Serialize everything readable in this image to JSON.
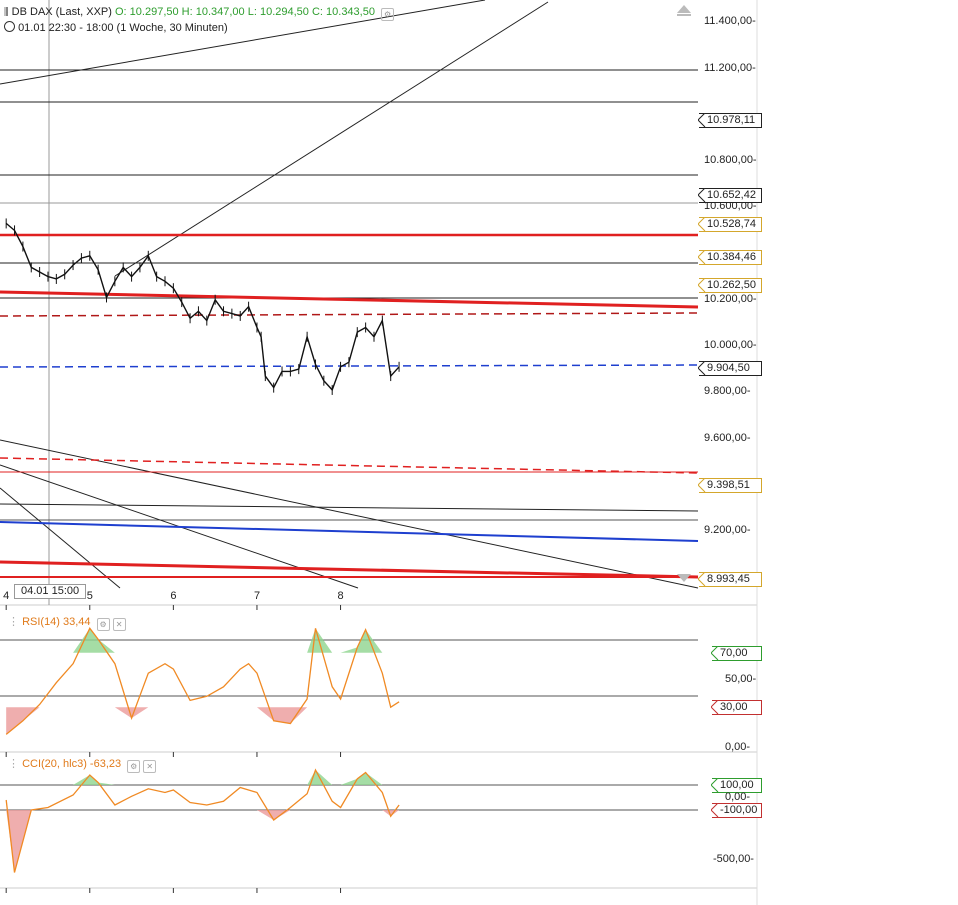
{
  "header": {
    "symbol": "DB DAX (Last, XXP)",
    "open": "O: 10.297,50",
    "high": "H: 10.347,00",
    "low": "L: 10.294,50",
    "close": "C: 10.343,50",
    "period": "01.01 22:30 - 18:00 (1 Woche, 30 Minuten)"
  },
  "crosshair": {
    "label": "04.01 15:00",
    "x_value": 4.5
  },
  "price_axis": {
    "ticks": [
      {
        "value": 11400,
        "label": "11.400,00-"
      },
      {
        "value": 11200,
        "label": "11.200,00-"
      },
      {
        "value": 10800,
        "label": "10.800,00-"
      },
      {
        "value": 10600,
        "label": "10.600,00-"
      },
      {
        "value": 10200,
        "label": "10.200,00-"
      },
      {
        "value": 10000,
        "label": "10.000,00-"
      },
      {
        "value": 9800,
        "label": "9.800,00-"
      },
      {
        "value": 9600,
        "label": "9.600,00-"
      },
      {
        "value": 9200,
        "label": "9.200,00-"
      }
    ],
    "range": [
      8880,
      11440
    ]
  },
  "price_tags": [
    {
      "value": 10978.11,
      "label": "10.978,11",
      "color": "#222222"
    },
    {
      "value": 10652.42,
      "label": "10.652,42",
      "color": "#222222"
    },
    {
      "value": 10528.74,
      "label": "10.528,74",
      "color": "#d4a72c"
    },
    {
      "value": 10384.46,
      "label": "10.384,46",
      "color": "#d4a72c"
    },
    {
      "value": 10262.5,
      "label": "10.262,50",
      "color": "#d4a72c"
    },
    {
      "value": 9904.5,
      "label": "9.904,50",
      "color": "#222222"
    },
    {
      "value": 9398.51,
      "label": "9.398,51",
      "color": "#d4a72c"
    },
    {
      "value": 8993.45,
      "label": "8.993,45",
      "color": "#d4a72c"
    }
  ],
  "x_axis": {
    "ticks": [
      {
        "value": 4,
        "label": "4"
      },
      {
        "value": 5,
        "label": "5"
      },
      {
        "value": 6,
        "label": "6"
      },
      {
        "value": 7,
        "label": "7"
      },
      {
        "value": 8,
        "label": "8"
      }
    ]
  },
  "chart_data": [
    {
      "type": "line",
      "name": "price",
      "x": [
        4.0,
        4.1,
        4.2,
        4.3,
        4.4,
        4.5,
        4.6,
        4.7,
        4.8,
        4.9,
        5.0,
        5.1,
        5.2,
        5.3,
        5.4,
        5.5,
        5.6,
        5.7,
        5.8,
        5.9,
        6.0,
        6.1,
        6.2,
        6.3,
        6.4,
        6.5,
        6.6,
        6.7,
        6.8,
        6.9,
        7.0,
        7.05,
        7.1,
        7.2,
        7.3,
        7.4,
        7.5,
        7.6,
        7.7,
        7.8,
        7.9,
        8.0,
        8.1,
        8.2,
        8.3,
        8.4,
        8.5,
        8.6,
        8.7
      ],
      "y": [
        10530,
        10500,
        10430,
        10340,
        10320,
        10300,
        10290,
        10310,
        10350,
        10380,
        10390,
        10330,
        10210,
        10280,
        10340,
        10300,
        10340,
        10390,
        10300,
        10280,
        10250,
        10190,
        10120,
        10150,
        10110,
        10200,
        10150,
        10140,
        10130,
        10170,
        10080,
        10040,
        9870,
        9820,
        9890,
        9890,
        9900,
        10040,
        9920,
        9850,
        9810,
        9910,
        9930,
        10060,
        10080,
        10040,
        10110,
        9870,
        9910
      ],
      "ylim": [
        8880,
        11440
      ],
      "xlim": [
        3.95,
        12.3
      ]
    },
    {
      "type": "line",
      "name": "RSI(14)",
      "label": "RSI(14)  33,44",
      "x": [
        4.0,
        4.2,
        4.4,
        4.6,
        4.8,
        5.0,
        5.1,
        5.3,
        5.5,
        5.7,
        5.9,
        6.0,
        6.2,
        6.4,
        6.6,
        6.8,
        6.9,
        7.0,
        7.2,
        7.4,
        7.6,
        7.7,
        7.9,
        8.0,
        8.2,
        8.3,
        8.5,
        8.6,
        8.7
      ],
      "y": [
        10,
        20,
        32,
        48,
        62,
        88,
        80,
        62,
        22,
        55,
        62,
        58,
        35,
        38,
        45,
        58,
        62,
        55,
        20,
        18,
        36,
        88,
        45,
        36,
        74,
        87,
        55,
        30,
        34
      ],
      "ylim": [
        0,
        100
      ],
      "ticks": [
        {
          "value": 70,
          "label": "70,00",
          "color": "#2e9d2e"
        },
        {
          "value": 50,
          "label": "50,00-",
          "color": "#222222"
        },
        {
          "value": 30,
          "label": "30,00",
          "color": "#c23030"
        },
        {
          "value": 0,
          "label": "0,00-",
          "color": "#222222"
        }
      ]
    },
    {
      "type": "line",
      "name": "CCI(20, hlc3)",
      "label": "CCI(20, hlc3)  -63,23",
      "x": [
        4.0,
        4.1,
        4.3,
        4.5,
        4.8,
        5.0,
        5.1,
        5.3,
        5.5,
        5.7,
        5.9,
        6.0,
        6.2,
        6.4,
        6.6,
        6.8,
        6.9,
        7.0,
        7.2,
        7.4,
        7.6,
        7.7,
        7.9,
        8.0,
        8.2,
        8.3,
        8.5,
        8.6,
        8.7
      ],
      "y": [
        -20,
        -600,
        -100,
        -80,
        20,
        180,
        120,
        -60,
        10,
        70,
        40,
        60,
        -40,
        -60,
        -30,
        80,
        60,
        40,
        -180,
        -80,
        30,
        220,
        -30,
        -80,
        150,
        200,
        40,
        -150,
        -60
      ],
      "ylim": [
        -700,
        300
      ],
      "ticks": [
        {
          "value": 100,
          "label": "100,00",
          "color": "#2e9d2e"
        },
        {
          "value": 0,
          "label": "0,00-",
          "color": "#222222"
        },
        {
          "value": -100,
          "label": "-100,00",
          "color": "#c23030"
        },
        {
          "value": -500,
          "label": "-500,00-",
          "color": "#222222"
        }
      ]
    }
  ]
}
